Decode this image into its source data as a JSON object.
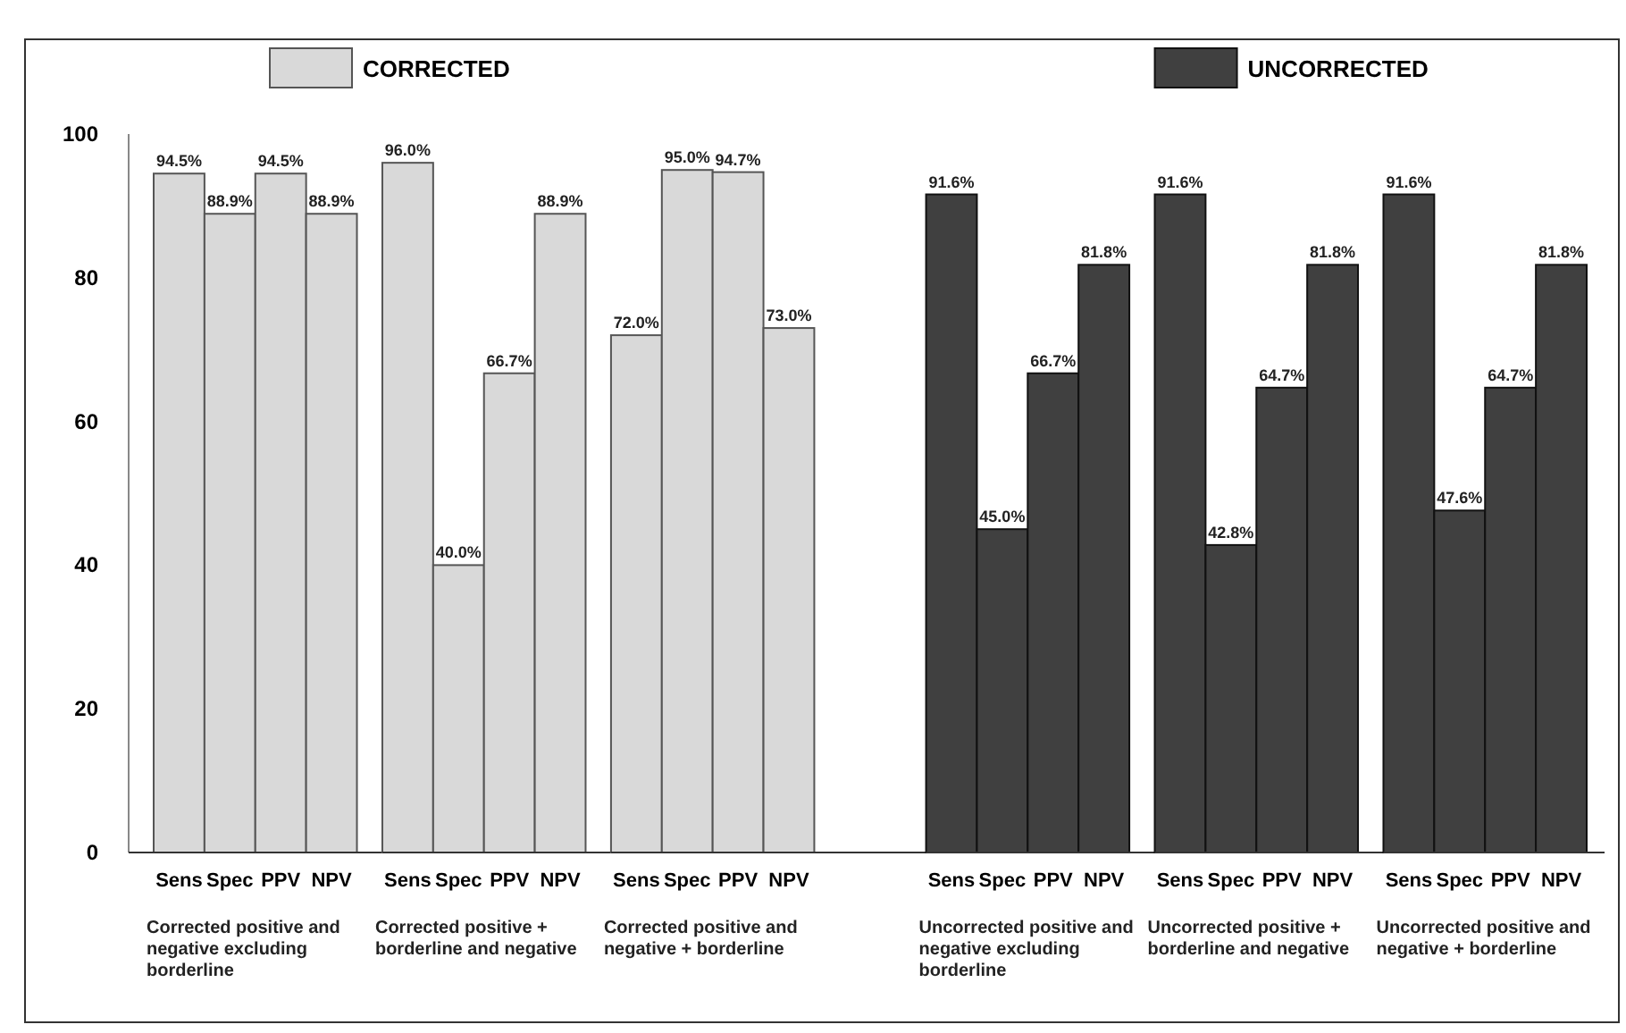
{
  "chart_data": [
    {
      "type": "bar",
      "categories": [
        "Sens",
        "Spec",
        "PPV",
        "NPV"
      ],
      "series": [
        {
          "name": "CORRECTED",
          "color": "#d9d9d9",
          "values": [
            94.5,
            88.9,
            94.5,
            88.9
          ],
          "value_labels": [
            "94.5%",
            "88.9%",
            "94.5%",
            "88.9%"
          ]
        }
      ],
      "ylim": [
        0,
        100
      ],
      "yticks": [
        0,
        20,
        40,
        60,
        80,
        100
      ],
      "legend": "top",
      "xlabel": "Corrected positive and negative excluding borderline"
    },
    {
      "type": "bar",
      "categories": [
        "Sens",
        "Spec",
        "PPV",
        "NPV"
      ],
      "series": [
        {
          "color": "#d9d9d9",
          "values": [
            96.0,
            40.0,
            66.7,
            88.9
          ],
          "value_labels": [
            "96.0%",
            "40.0%",
            "66.7%",
            "88.9%"
          ]
        }
      ],
      "ylim": [
        0,
        100
      ],
      "tick_labels": "x",
      "xlabel": "Corrected positive + borderline  and negative"
    },
    {
      "type": "bar",
      "categories": [
        "Sens",
        "Spec",
        "PPV",
        "NPV"
      ],
      "series": [
        {
          "color": "#d9d9d9",
          "values": [
            72.0,
            95.0,
            94.7,
            73.0
          ],
          "value_labels": [
            "72.0%",
            "95.0%",
            "94.7%",
            "73.0%"
          ]
        }
      ],
      "ylim": [
        0,
        100
      ],
      "tick_labels": "x",
      "xlabel": "Corrected positive and negative + borderline"
    },
    {
      "type": "bar",
      "categories": [
        "Sens",
        "Spec",
        "PPV",
        "NPV"
      ],
      "series": [
        {
          "name": "UNCORRECTED",
          "color": "#404040",
          "values": [
            91.6,
            45.0,
            66.7,
            81.8
          ],
          "value_labels": [
            "91.6%",
            "45.0%",
            "66.7%",
            "81.8%"
          ]
        }
      ],
      "ylim": [
        0,
        100
      ],
      "tick_labels": "x",
      "legend": "top",
      "xlabel": "Uncorrected positive and negative excluding borderline"
    },
    {
      "type": "bar",
      "categories": [
        "Sens",
        "Spec",
        "PPV",
        "NPV"
      ],
      "series": [
        {
          "color": "#404040",
          "values": [
            91.6,
            42.8,
            64.7,
            81.8
          ],
          "value_labels": [
            "91.6%",
            "42.8%",
            "64.7%",
            "81.8%"
          ]
        }
      ],
      "ylim": [
        0,
        100
      ],
      "tick_labels": "x",
      "xlabel": "Uncorrected positive + borderline  and negative"
    },
    {
      "type": "bar",
      "categories": [
        "Sens",
        "Spec",
        "PPV",
        "NPV"
      ],
      "series": [
        {
          "color": "#404040",
          "values": [
            91.6,
            47.6,
            64.7,
            81.8
          ],
          "value_labels": [
            "91.6%",
            "47.6%",
            "64.7%",
            "81.8%"
          ]
        }
      ],
      "ylim": [
        0,
        100
      ],
      "tick_labels": "x",
      "xlabel": "Uncorrected positive and negative + borderline"
    }
  ]
}
